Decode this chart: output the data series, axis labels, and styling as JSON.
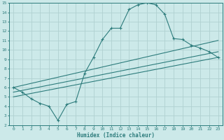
{
  "xlabel": "Humidex (Indice chaleur)",
  "bg_color": "#cce9e9",
  "grid_color": "#b0d0d0",
  "line_color": "#2d7c7c",
  "xlim": [
    -0.5,
    23.5
  ],
  "ylim": [
    2,
    15
  ],
  "xticks": [
    0,
    1,
    2,
    3,
    4,
    5,
    6,
    7,
    8,
    9,
    10,
    11,
    12,
    13,
    14,
    15,
    16,
    17,
    18,
    19,
    20,
    21,
    22,
    23
  ],
  "yticks": [
    2,
    3,
    4,
    5,
    6,
    7,
    8,
    9,
    10,
    11,
    12,
    13,
    14,
    15
  ],
  "curve1_x": [
    0,
    1,
    2,
    3,
    4,
    5,
    6,
    7,
    8,
    9,
    10,
    11,
    12,
    13,
    14,
    15,
    16,
    17,
    18,
    19,
    20,
    21,
    22,
    23
  ],
  "curve1_y": [
    6.0,
    5.5,
    4.8,
    4.3,
    4.0,
    2.5,
    4.2,
    4.5,
    7.5,
    9.2,
    11.1,
    12.3,
    12.3,
    14.3,
    14.8,
    15.0,
    14.8,
    13.8,
    11.2,
    11.1,
    10.5,
    10.2,
    9.8,
    9.2
  ],
  "line1_x": [
    0,
    23
  ],
  "line1_y": [
    6.0,
    11.0
  ],
  "line2_x": [
    0,
    23
  ],
  "line2_y": [
    5.5,
    9.8
  ],
  "line3_x": [
    0,
    23
  ],
  "line3_y": [
    5.0,
    9.2
  ]
}
